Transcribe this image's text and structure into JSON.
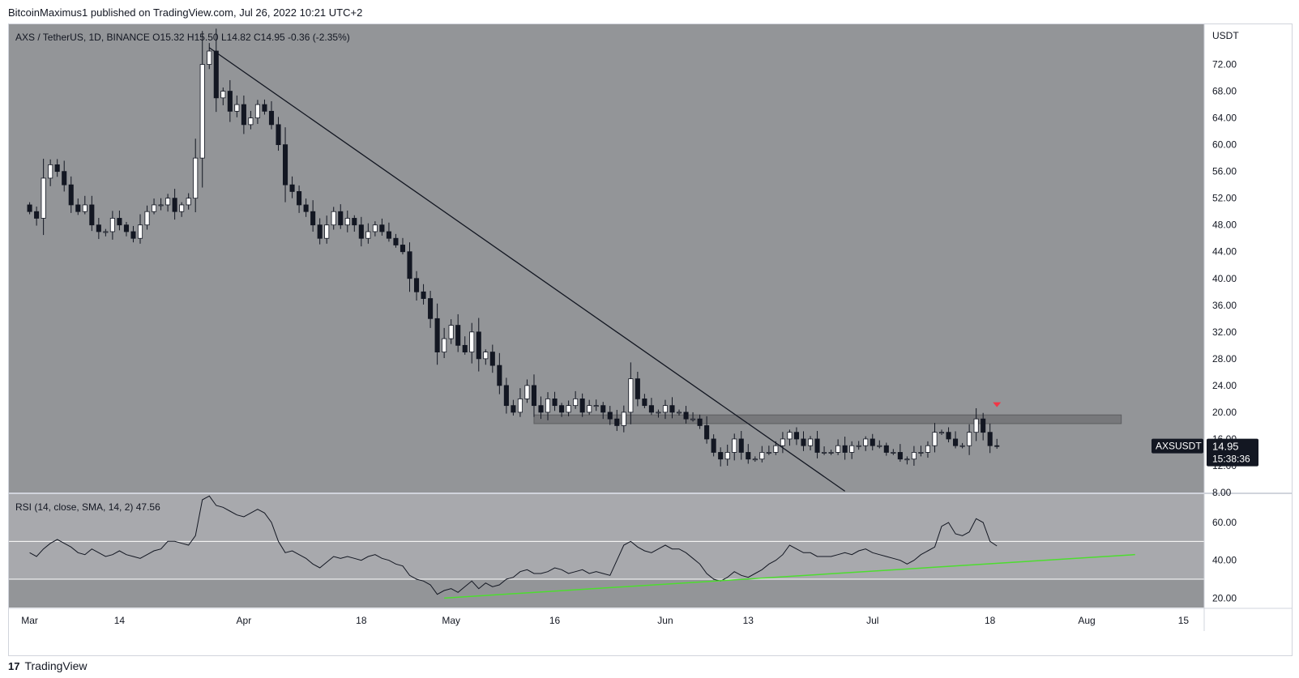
{
  "header": {
    "text": "BitcoinMaximus1 published on TradingView.com, Jul 26, 2022 10:21 UTC+2"
  },
  "footer": {
    "logo": "17",
    "brand": "TradingView"
  },
  "colors": {
    "background": "#939598",
    "rsi_band": "#a8a9ad",
    "rsi_lower": "#939598",
    "candle_up": "#ffffff",
    "candle_down": "#131722",
    "trendline": "#131722",
    "rsi_trendline": "#4ddd2f",
    "resistance": "#6e6f72",
    "marker": "#f23645"
  },
  "chart_data": [
    {
      "type": "candlestick",
      "symbol": "AXS / TetherUS, 1D, BINANCE",
      "ohlc": {
        "o_label": "O",
        "o": "15.32",
        "h_label": "H",
        "h": "15.50",
        "l_label": "L",
        "l": "14.82",
        "c_label": "C",
        "c": "14.95",
        "change": "-0.36 (-2.35%)"
      },
      "currency": "USDT",
      "y_ticks": [
        "72.00",
        "68.00",
        "64.00",
        "60.00",
        "56.00",
        "52.00",
        "48.00",
        "44.00",
        "40.00",
        "36.00",
        "32.00",
        "28.00",
        "24.00",
        "20.00",
        "16.00",
        "12.00",
        "8.00"
      ],
      "ylim": [
        8,
        78
      ],
      "x_labels": [
        {
          "label": "Mar",
          "day": 0
        },
        {
          "label": "14",
          "day": 13
        },
        {
          "label": "Apr",
          "day": 31
        },
        {
          "label": "18",
          "day": 48
        },
        {
          "label": "May",
          "day": 61
        },
        {
          "label": "16",
          "day": 76
        },
        {
          "label": "Jun",
          "day": 92
        },
        {
          "label": "13",
          "day": 104
        },
        {
          "label": "Jul",
          "day": 122
        },
        {
          "label": "18",
          "day": 139
        },
        {
          "label": "Aug",
          "day": 153
        },
        {
          "label": "15",
          "day": 167
        }
      ],
      "x_range": [
        -3,
        170
      ],
      "price_tag": {
        "symbol": "AXSUSDT",
        "price": "14.95",
        "countdown": "15:38:36"
      },
      "closes": [
        50,
        49,
        55,
        57,
        56,
        54,
        51,
        50,
        51,
        48,
        47,
        47,
        49,
        48,
        47,
        46,
        48,
        50,
        51,
        51,
        52,
        50,
        51,
        52,
        58,
        72,
        74,
        67,
        68,
        65,
        66,
        63,
        64,
        66,
        65,
        63,
        60,
        54,
        53,
        51,
        50,
        48,
        46,
        48,
        50,
        48,
        49,
        48,
        46,
        47,
        48,
        47,
        46,
        45,
        44,
        40,
        38,
        37,
        34,
        29,
        31,
        33,
        30,
        29,
        32,
        28,
        29,
        27,
        24,
        21,
        20,
        22,
        24,
        21,
        20,
        22,
        21,
        20,
        21,
        22,
        20,
        21,
        21,
        20,
        19,
        18,
        20,
        25,
        22,
        21,
        20,
        20,
        21,
        20,
        20,
        19,
        19,
        18,
        16,
        14,
        13,
        14,
        16,
        14,
        13,
        13,
        14,
        14,
        15,
        16,
        17,
        16,
        15,
        16,
        14,
        14,
        14,
        15,
        14,
        15,
        15,
        16,
        15,
        15,
        14,
        14,
        13,
        13,
        14,
        14,
        15,
        17,
        17,
        16,
        15,
        15,
        17,
        19,
        17,
        15,
        14.95
      ],
      "resistance": {
        "low": 18.3,
        "high": 19.6,
        "day_start": 73,
        "day_end": 158
      },
      "trendline": {
        "from": {
          "day": 26,
          "price": 74.5
        },
        "to": {
          "day": 118,
          "price": 8.2
        }
      },
      "marker": {
        "day": 140,
        "price": 21
      },
      "rsi": {
        "label": "RSI (14, close, SMA, 14, 2)",
        "value": "47.56",
        "y_ticks": [
          "60.00",
          "40.00",
          "20.00"
        ],
        "band": [
          30,
          50
        ],
        "values": [
          44,
          42,
          46,
          49,
          51,
          49,
          47,
          44,
          43,
          46,
          44,
          42,
          43,
          45,
          43,
          42,
          41,
          43,
          45,
          46,
          50,
          50,
          49,
          48,
          53,
          72,
          74,
          69,
          68,
          66,
          64,
          63,
          65,
          67,
          65,
          60,
          50,
          44,
          45,
          43,
          41,
          38,
          36,
          39,
          42,
          41,
          42,
          41,
          40,
          42,
          43,
          41,
          40,
          38,
          37,
          32,
          30,
          29,
          27,
          22,
          24,
          25,
          23,
          26,
          29,
          25,
          28,
          26,
          27,
          30,
          31,
          34,
          35,
          33,
          33,
          34,
          36,
          35,
          33,
          34,
          35,
          33,
          34,
          33,
          32,
          40,
          48,
          50,
          47,
          45,
          44,
          46,
          48,
          46,
          46,
          44,
          41,
          38,
          33,
          30,
          29,
          31,
          34,
          32,
          31,
          33,
          35,
          38,
          40,
          43,
          48,
          46,
          44,
          44,
          42,
          42,
          42,
          43,
          44,
          43,
          45,
          46,
          44,
          43,
          42,
          41,
          40,
          38,
          40,
          43,
          45,
          47,
          58,
          60,
          54,
          53,
          55,
          62,
          60,
          50,
          47.56
        ],
        "trendline": {
          "from": {
            "day": 60,
            "value": 20
          },
          "to": {
            "day": 160,
            "value": 43
          }
        }
      }
    }
  ]
}
